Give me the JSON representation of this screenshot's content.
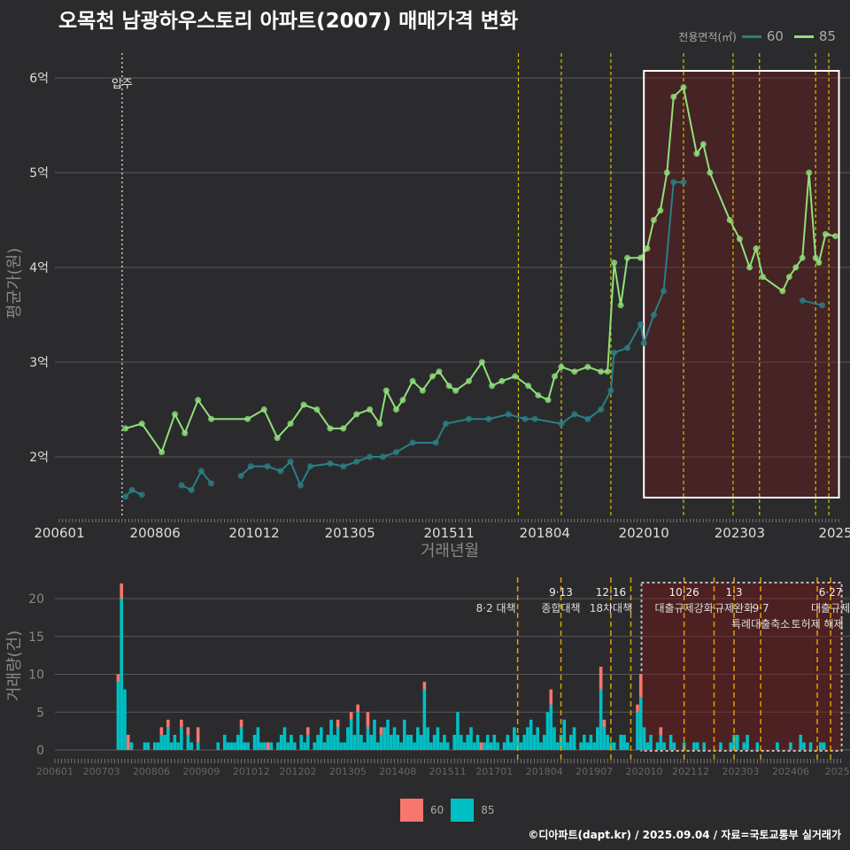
{
  "title": "오목천 남광하우스토리 아파트(2007) 매매가격 변화",
  "legend_top": {
    "title": "전용면적(㎡)",
    "items": [
      {
        "label": "60",
        "color": "#2a7f86"
      },
      {
        "label": "85",
        "color": "#90e07a"
      }
    ]
  },
  "legend_bottom": {
    "items": [
      {
        "label": "60",
        "color": "#f8766d"
      },
      {
        "label": "85",
        "color": "#00bfc4"
      }
    ]
  },
  "credit": "©디아파트(dapt.kr) / 2025.09.04 / 자료=국토교통부 실거래가",
  "chart_data": [
    {
      "type": "line",
      "title": "오목천 남광하우스토리 아파트(2007) 매매가격 변화",
      "xlabel": "거래년월",
      "ylabel": "평균가(원)",
      "x_unit": "months since 2006-01",
      "yticks": [
        {
          "v": 2,
          "label": "2억"
        },
        {
          "v": 3,
          "label": "3억"
        },
        {
          "v": 4,
          "label": "4억"
        },
        {
          "v": 5,
          "label": "5억"
        },
        {
          "v": 6,
          "label": "6억"
        }
      ],
      "ylim": [
        1.55,
        6.3
      ],
      "xticks": [
        {
          "m": 0,
          "label": "200601"
        },
        {
          "m": 29,
          "label": "200806"
        },
        {
          "m": 59,
          "label": "201012"
        },
        {
          "m": 88,
          "label": "201305"
        },
        {
          "m": 118,
          "label": "201511"
        },
        {
          "m": 147,
          "label": "201804"
        },
        {
          "m": 177,
          "label": "202010"
        },
        {
          "m": 206,
          "label": "202303"
        },
        {
          "m": 235,
          "label": "2025"
        }
      ],
      "move_in": {
        "m": 19,
        "label": "입주"
      },
      "highlight": {
        "from": 177,
        "to": 235
      },
      "policy_months": [
        139,
        152,
        167,
        189,
        204,
        212,
        229,
        233
      ],
      "series": [
        {
          "name": "85",
          "color": "#90e07a",
          "points": [
            [
              20,
              2.3
            ],
            [
              25,
              2.35
            ],
            [
              31,
              2.05
            ],
            [
              35,
              2.45
            ],
            [
              38,
              2.25
            ],
            [
              42,
              2.6
            ],
            [
              46,
              2.4
            ],
            [
              57,
              2.4
            ],
            [
              62,
              2.5
            ],
            [
              66,
              2.2
            ],
            [
              70,
              2.35
            ],
            [
              74,
              2.55
            ],
            [
              78,
              2.5
            ],
            [
              82,
              2.3
            ],
            [
              86,
              2.3
            ],
            [
              90,
              2.45
            ],
            [
              94,
              2.5
            ],
            [
              97,
              2.35
            ],
            [
              99,
              2.7
            ],
            [
              102,
              2.5
            ],
            [
              104,
              2.6
            ],
            [
              107,
              2.8
            ],
            [
              110,
              2.7
            ],
            [
              113,
              2.85
            ],
            [
              115,
              2.9
            ],
            [
              118,
              2.75
            ],
            [
              120,
              2.7
            ],
            [
              124,
              2.8
            ],
            [
              128,
              3.0
            ],
            [
              131,
              2.75
            ],
            [
              134,
              2.8
            ],
            [
              138,
              2.85
            ],
            [
              142,
              2.75
            ],
            [
              145,
              2.65
            ],
            [
              148,
              2.6
            ],
            [
              150,
              2.85
            ],
            [
              152,
              2.95
            ],
            [
              156,
              2.9
            ],
            [
              160,
              2.95
            ],
            [
              164,
              2.9
            ],
            [
              166,
              2.9
            ],
            [
              168,
              4.05
            ],
            [
              170,
              3.6
            ],
            [
              172,
              4.1
            ],
            [
              176,
              4.1
            ],
            [
              178,
              4.2
            ],
            [
              180,
              4.5
            ],
            [
              182,
              4.6
            ],
            [
              184,
              5.0
            ],
            [
              186,
              5.8
            ],
            [
              189,
              5.9
            ],
            [
              193,
              5.2
            ],
            [
              195,
              5.3
            ],
            [
              197,
              5.0
            ],
            [
              203,
              4.5
            ],
            [
              206,
              4.3
            ],
            [
              209,
              4.0
            ],
            [
              211,
              4.2
            ],
            [
              213,
              3.9
            ],
            [
              219,
              3.75
            ],
            [
              221,
              3.9
            ],
            [
              223,
              4.0
            ],
            [
              225,
              4.1
            ],
            [
              227,
              5.0
            ],
            [
              229,
              4.1
            ],
            [
              230,
              4.05
            ],
            [
              232,
              4.35
            ],
            [
              235,
              4.33
            ]
          ]
        },
        {
          "name": "60",
          "color": "#2a7f86",
          "points": [
            [
              20,
              1.58
            ],
            [
              22,
              1.65
            ],
            [
              25,
              1.6
            ],
            [
              37,
              1.7
            ],
            [
              40,
              1.65
            ],
            [
              43,
              1.85
            ],
            [
              46,
              1.72
            ],
            [
              55,
              1.8
            ],
            [
              58,
              1.9
            ],
            [
              63,
              1.9
            ],
            [
              67,
              1.85
            ],
            [
              70,
              1.95
            ],
            [
              73,
              1.7
            ],
            [
              76,
              1.9
            ],
            [
              82,
              1.93
            ],
            [
              86,
              1.9
            ],
            [
              90,
              1.95
            ],
            [
              94,
              2.0
            ],
            [
              98,
              2.0
            ],
            [
              102,
              2.05
            ],
            [
              107,
              2.15
            ],
            [
              114,
              2.15
            ],
            [
              117,
              2.35
            ],
            [
              124,
              2.4
            ],
            [
              130,
              2.4
            ],
            [
              136,
              2.45
            ],
            [
              141,
              2.4
            ],
            [
              144,
              2.4
            ],
            [
              152,
              2.35
            ],
            [
              156,
              2.45
            ],
            [
              160,
              2.4
            ],
            [
              164,
              2.5
            ],
            [
              167,
              2.7
            ],
            [
              168,
              3.1
            ],
            [
              172,
              3.15
            ],
            [
              176,
              3.4
            ],
            [
              177,
              3.2
            ],
            [
              180,
              3.5
            ],
            [
              183,
              3.75
            ],
            [
              186,
              4.9
            ],
            [
              189,
              4.9
            ],
            [
              225,
              3.65
            ],
            [
              231,
              3.6
            ]
          ]
        }
      ]
    },
    {
      "type": "bar",
      "xlabel": "",
      "ylabel": "거래량(건)",
      "stacked": true,
      "ylim": [
        0,
        22
      ],
      "yticks": [
        0,
        5,
        10,
        15,
        20
      ],
      "xticks": [
        {
          "m": 0,
          "label": "200601"
        },
        {
          "m": 14,
          "label": "200703"
        },
        {
          "m": 29,
          "label": "200806"
        },
        {
          "m": 44,
          "label": "200909"
        },
        {
          "m": 59,
          "label": "201012"
        },
        {
          "m": 73,
          "label": "201202"
        },
        {
          "m": 88,
          "label": "201305"
        },
        {
          "m": 103,
          "label": "201408"
        },
        {
          "m": 118,
          "label": "201511"
        },
        {
          "m": 132,
          "label": "201701"
        },
        {
          "m": 147,
          "label": "201804"
        },
        {
          "m": 162,
          "label": "201907"
        },
        {
          "m": 177,
          "label": "202010"
        },
        {
          "m": 191,
          "label": "202112"
        },
        {
          "m": 206,
          "label": "202303"
        },
        {
          "m": 221,
          "label": "202406"
        },
        {
          "m": 235,
          "label": "2025"
        }
      ],
      "highlight": {
        "from": 177,
        "to": 235
      },
      "policy_months": [
        139,
        152,
        167,
        173,
        189,
        198,
        204,
        212,
        229,
        233
      ],
      "annotations": [
        {
          "m": 139,
          "line": 1,
          "label": "8·2 대책",
          "align": "end"
        },
        {
          "m": 152,
          "line": 0,
          "label": "9·13"
        },
        {
          "m": 152,
          "line": 1,
          "label": "종합대책"
        },
        {
          "m": 167,
          "line": 0,
          "label": "12·16"
        },
        {
          "m": 167,
          "line": 1,
          "label": "18차대책"
        },
        {
          "m": 189,
          "line": 0,
          "label": "10·26"
        },
        {
          "m": 189,
          "line": 1,
          "label": "대출규제강화"
        },
        {
          "m": 204,
          "line": 0,
          "label": "1·3"
        },
        {
          "m": 204,
          "line": 1,
          "label": "규제완화"
        },
        {
          "m": 212,
          "line": 1,
          "label": "9·7"
        },
        {
          "m": 212,
          "line": 2,
          "label": "특례대출축소"
        },
        {
          "m": 229,
          "line": 2,
          "label": "토허제 해제"
        },
        {
          "m": 233,
          "line": 0,
          "label": "6·27"
        },
        {
          "m": 233,
          "line": 1,
          "label": "대출규제"
        }
      ],
      "series": [
        {
          "name": "60",
          "color": "#f8766d",
          "values": [
            0,
            0,
            0,
            0,
            0,
            0,
            0,
            0,
            0,
            0,
            0,
            0,
            0,
            0,
            0,
            0,
            0,
            0,
            0,
            1,
            2,
            0,
            2,
            0,
            0,
            0,
            0,
            0,
            0,
            0,
            0,
            0,
            1,
            0,
            1,
            0,
            0,
            0,
            1,
            0,
            1,
            0,
            0,
            2,
            0,
            0,
            0,
            0,
            0,
            0,
            0,
            0,
            0,
            0,
            0,
            0,
            1,
            0,
            0,
            0,
            0,
            0,
            0,
            0,
            1,
            0,
            0,
            0,
            0,
            0,
            0,
            0,
            0,
            0,
            0,
            0,
            1,
            0,
            0,
            0,
            0,
            0,
            0,
            0,
            0,
            1,
            0,
            0,
            0,
            1,
            0,
            1,
            0,
            0,
            2,
            0,
            0,
            0,
            1,
            0,
            0,
            0,
            0,
            0,
            0,
            0,
            0,
            0,
            0,
            0,
            0,
            1,
            0,
            0,
            0,
            0,
            0,
            0,
            0,
            0,
            0,
            0,
            0,
            0,
            0,
            0,
            0,
            0,
            1,
            0,
            0,
            0,
            0,
            0,
            0,
            0,
            0,
            0,
            0,
            0,
            0,
            0,
            0,
            0,
            0,
            0,
            0,
            0,
            0,
            2,
            0,
            0,
            0,
            0,
            0,
            0,
            0,
            0,
            0,
            0,
            0,
            0,
            0,
            0,
            3,
            1,
            0,
            0,
            0,
            0,
            0,
            0,
            0,
            0,
            0,
            1,
            3,
            0,
            0,
            0,
            0,
            0,
            1,
            0,
            0,
            0,
            0,
            0,
            0,
            0,
            0,
            0,
            0,
            0,
            0,
            0,
            0,
            0,
            0,
            0,
            0,
            0,
            0,
            0,
            0,
            0,
            0,
            0,
            0,
            0,
            0,
            0,
            0,
            0,
            0,
            0,
            0,
            0,
            0,
            0,
            0,
            0,
            0,
            0,
            0,
            0,
            0,
            0,
            0,
            0,
            0,
            0,
            0,
            0,
            0,
            0
          ]
        },
        {
          "name": "85",
          "color": "#00bfc4",
          "values": [
            0,
            0,
            0,
            0,
            0,
            0,
            0,
            0,
            0,
            0,
            0,
            0,
            0,
            0,
            0,
            0,
            0,
            0,
            0,
            9,
            20,
            8,
            0,
            1,
            0,
            0,
            0,
            1,
            1,
            0,
            1,
            1,
            2,
            2,
            3,
            1,
            2,
            1,
            3,
            0,
            2,
            1,
            0,
            1,
            0,
            0,
            0,
            0,
            0,
            1,
            0,
            2,
            1,
            1,
            1,
            2,
            3,
            1,
            1,
            0,
            2,
            3,
            1,
            1,
            0,
            1,
            0,
            1,
            2,
            3,
            1,
            2,
            1,
            0,
            2,
            1,
            2,
            0,
            1,
            2,
            3,
            1,
            2,
            4,
            2,
            3,
            1,
            1,
            3,
            4,
            2,
            5,
            2,
            1,
            3,
            2,
            4,
            1,
            2,
            3,
            4,
            2,
            3,
            2,
            1,
            4,
            2,
            2,
            1,
            3,
            2,
            8,
            3,
            1,
            2,
            3,
            1,
            2,
            1,
            0,
            2,
            5,
            2,
            1,
            2,
            3,
            1,
            2,
            0,
            1,
            2,
            1,
            2,
            1,
            0,
            1,
            2,
            1,
            3,
            2,
            1,
            2,
            3,
            4,
            2,
            3,
            1,
            2,
            5,
            6,
            3,
            1,
            2,
            4,
            1,
            2,
            3,
            0,
            1,
            2,
            1,
            2,
            1,
            3,
            8,
            3,
            2,
            1,
            1,
            0,
            2,
            2,
            1,
            0,
            0,
            5,
            7,
            3,
            1,
            2,
            0,
            1,
            2,
            1,
            0,
            2,
            1,
            0,
            0,
            1,
            0,
            0,
            1,
            1,
            0,
            1,
            0,
            0,
            0,
            0,
            1,
            0,
            0,
            1,
            2,
            2,
            0,
            1,
            2,
            0,
            0,
            1,
            0,
            0,
            0,
            0,
            0,
            1,
            0,
            0,
            0,
            1,
            0,
            0,
            2,
            1,
            0,
            1,
            0,
            0,
            1,
            1,
            0,
            0,
            0,
            0
          ]
        }
      ]
    }
  ]
}
